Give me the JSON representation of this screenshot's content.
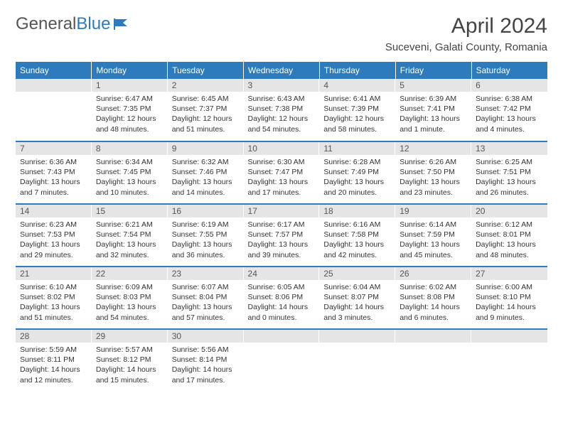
{
  "brand": {
    "word1": "General",
    "word2": "Blue"
  },
  "title": "April 2024",
  "subtitle": "Suceveni, Galati County, Romania",
  "colors": {
    "header_bg": "#2d7bbd",
    "header_fg": "#ffffff",
    "daynum_bg": "#e5e5e5",
    "daynum_fg": "#555555",
    "row_divider": "#2d7bbd",
    "text": "#333333",
    "background": "#ffffff"
  },
  "typography": {
    "title_fontsize": 30,
    "subtitle_fontsize": 15,
    "dayheader_fontsize": 12,
    "daynum_fontsize": 12,
    "body_fontsize": 10.5
  },
  "dayHeaders": [
    "Sunday",
    "Monday",
    "Tuesday",
    "Wednesday",
    "Thursday",
    "Friday",
    "Saturday"
  ],
  "weeks": [
    [
      null,
      {
        "n": "1",
        "sr": "Sunrise: 6:47 AM",
        "ss": "Sunset: 7:35 PM",
        "dl1": "Daylight: 12 hours",
        "dl2": "and 48 minutes."
      },
      {
        "n": "2",
        "sr": "Sunrise: 6:45 AM",
        "ss": "Sunset: 7:37 PM",
        "dl1": "Daylight: 12 hours",
        "dl2": "and 51 minutes."
      },
      {
        "n": "3",
        "sr": "Sunrise: 6:43 AM",
        "ss": "Sunset: 7:38 PM",
        "dl1": "Daylight: 12 hours",
        "dl2": "and 54 minutes."
      },
      {
        "n": "4",
        "sr": "Sunrise: 6:41 AM",
        "ss": "Sunset: 7:39 PM",
        "dl1": "Daylight: 12 hours",
        "dl2": "and 58 minutes."
      },
      {
        "n": "5",
        "sr": "Sunrise: 6:39 AM",
        "ss": "Sunset: 7:41 PM",
        "dl1": "Daylight: 13 hours",
        "dl2": "and 1 minute."
      },
      {
        "n": "6",
        "sr": "Sunrise: 6:38 AM",
        "ss": "Sunset: 7:42 PM",
        "dl1": "Daylight: 13 hours",
        "dl2": "and 4 minutes."
      }
    ],
    [
      {
        "n": "7",
        "sr": "Sunrise: 6:36 AM",
        "ss": "Sunset: 7:43 PM",
        "dl1": "Daylight: 13 hours",
        "dl2": "and 7 minutes."
      },
      {
        "n": "8",
        "sr": "Sunrise: 6:34 AM",
        "ss": "Sunset: 7:45 PM",
        "dl1": "Daylight: 13 hours",
        "dl2": "and 10 minutes."
      },
      {
        "n": "9",
        "sr": "Sunrise: 6:32 AM",
        "ss": "Sunset: 7:46 PM",
        "dl1": "Daylight: 13 hours",
        "dl2": "and 14 minutes."
      },
      {
        "n": "10",
        "sr": "Sunrise: 6:30 AM",
        "ss": "Sunset: 7:47 PM",
        "dl1": "Daylight: 13 hours",
        "dl2": "and 17 minutes."
      },
      {
        "n": "11",
        "sr": "Sunrise: 6:28 AM",
        "ss": "Sunset: 7:49 PM",
        "dl1": "Daylight: 13 hours",
        "dl2": "and 20 minutes."
      },
      {
        "n": "12",
        "sr": "Sunrise: 6:26 AM",
        "ss": "Sunset: 7:50 PM",
        "dl1": "Daylight: 13 hours",
        "dl2": "and 23 minutes."
      },
      {
        "n": "13",
        "sr": "Sunrise: 6:25 AM",
        "ss": "Sunset: 7:51 PM",
        "dl1": "Daylight: 13 hours",
        "dl2": "and 26 minutes."
      }
    ],
    [
      {
        "n": "14",
        "sr": "Sunrise: 6:23 AM",
        "ss": "Sunset: 7:53 PM",
        "dl1": "Daylight: 13 hours",
        "dl2": "and 29 minutes."
      },
      {
        "n": "15",
        "sr": "Sunrise: 6:21 AM",
        "ss": "Sunset: 7:54 PM",
        "dl1": "Daylight: 13 hours",
        "dl2": "and 32 minutes."
      },
      {
        "n": "16",
        "sr": "Sunrise: 6:19 AM",
        "ss": "Sunset: 7:55 PM",
        "dl1": "Daylight: 13 hours",
        "dl2": "and 36 minutes."
      },
      {
        "n": "17",
        "sr": "Sunrise: 6:17 AM",
        "ss": "Sunset: 7:57 PM",
        "dl1": "Daylight: 13 hours",
        "dl2": "and 39 minutes."
      },
      {
        "n": "18",
        "sr": "Sunrise: 6:16 AM",
        "ss": "Sunset: 7:58 PM",
        "dl1": "Daylight: 13 hours",
        "dl2": "and 42 minutes."
      },
      {
        "n": "19",
        "sr": "Sunrise: 6:14 AM",
        "ss": "Sunset: 7:59 PM",
        "dl1": "Daylight: 13 hours",
        "dl2": "and 45 minutes."
      },
      {
        "n": "20",
        "sr": "Sunrise: 6:12 AM",
        "ss": "Sunset: 8:01 PM",
        "dl1": "Daylight: 13 hours",
        "dl2": "and 48 minutes."
      }
    ],
    [
      {
        "n": "21",
        "sr": "Sunrise: 6:10 AM",
        "ss": "Sunset: 8:02 PM",
        "dl1": "Daylight: 13 hours",
        "dl2": "and 51 minutes."
      },
      {
        "n": "22",
        "sr": "Sunrise: 6:09 AM",
        "ss": "Sunset: 8:03 PM",
        "dl1": "Daylight: 13 hours",
        "dl2": "and 54 minutes."
      },
      {
        "n": "23",
        "sr": "Sunrise: 6:07 AM",
        "ss": "Sunset: 8:04 PM",
        "dl1": "Daylight: 13 hours",
        "dl2": "and 57 minutes."
      },
      {
        "n": "24",
        "sr": "Sunrise: 6:05 AM",
        "ss": "Sunset: 8:06 PM",
        "dl1": "Daylight: 14 hours",
        "dl2": "and 0 minutes."
      },
      {
        "n": "25",
        "sr": "Sunrise: 6:04 AM",
        "ss": "Sunset: 8:07 PM",
        "dl1": "Daylight: 14 hours",
        "dl2": "and 3 minutes."
      },
      {
        "n": "26",
        "sr": "Sunrise: 6:02 AM",
        "ss": "Sunset: 8:08 PM",
        "dl1": "Daylight: 14 hours",
        "dl2": "and 6 minutes."
      },
      {
        "n": "27",
        "sr": "Sunrise: 6:00 AM",
        "ss": "Sunset: 8:10 PM",
        "dl1": "Daylight: 14 hours",
        "dl2": "and 9 minutes."
      }
    ],
    [
      {
        "n": "28",
        "sr": "Sunrise: 5:59 AM",
        "ss": "Sunset: 8:11 PM",
        "dl1": "Daylight: 14 hours",
        "dl2": "and 12 minutes."
      },
      {
        "n": "29",
        "sr": "Sunrise: 5:57 AM",
        "ss": "Sunset: 8:12 PM",
        "dl1": "Daylight: 14 hours",
        "dl2": "and 15 minutes."
      },
      {
        "n": "30",
        "sr": "Sunrise: 5:56 AM",
        "ss": "Sunset: 8:14 PM",
        "dl1": "Daylight: 14 hours",
        "dl2": "and 17 minutes."
      },
      null,
      null,
      null,
      null
    ]
  ]
}
